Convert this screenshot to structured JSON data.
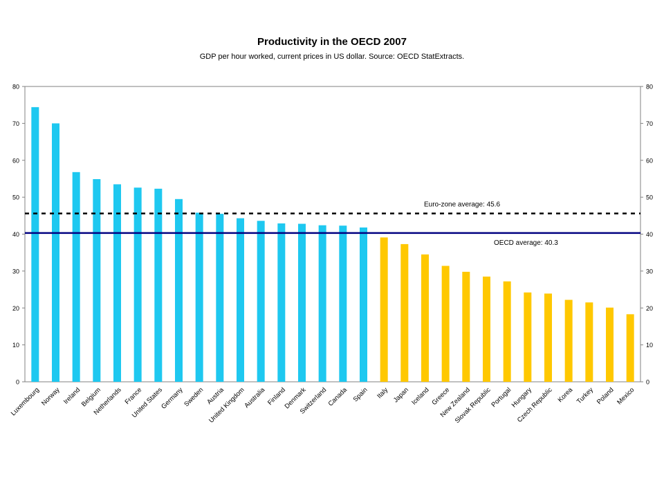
{
  "chart_data": {
    "type": "bar",
    "title": "Productivity in the OECD 2007",
    "subtitle": "GDP per hour worked, current prices in US dollar. Source: OECD StatExtracts.",
    "xlabel": "",
    "ylabel": "",
    "ylim": [
      0,
      80
    ],
    "yticks": [
      0,
      10,
      20,
      30,
      40,
      50,
      60,
      70,
      80
    ],
    "grid": false,
    "categories": [
      "Luxembourg",
      "Norway",
      "Ireland",
      "Belgium",
      "Netherlands",
      "France",
      "United States",
      "Germany",
      "Sweden",
      "Austria",
      "United Kingdom",
      "Australia",
      "Finland",
      "Denmark",
      "Switzerland",
      "Canada",
      "Spain",
      "Italy",
      "Japan",
      "Iceland",
      "Greece",
      "New Zealand",
      "Slovak Republic",
      "Portugal",
      "Hungary",
      "Czech Republic",
      "Korea",
      "Turkey",
      "Poland",
      "Mexico"
    ],
    "values": [
      74.4,
      70.0,
      56.8,
      54.9,
      53.5,
      52.6,
      52.3,
      49.5,
      45.8,
      45.5,
      44.3,
      43.6,
      42.9,
      42.8,
      42.4,
      42.3,
      41.8,
      39.1,
      37.3,
      34.5,
      31.4,
      29.8,
      28.5,
      27.2,
      24.2,
      23.9,
      22.2,
      21.5,
      20.1,
      18.3
    ],
    "colors": {
      "above_oecd": "#1ec8f0",
      "below_oecd": "#ffc800"
    },
    "reference_lines": [
      {
        "label": "Euro-zone average: 45.6",
        "value": 45.6,
        "style": "dashed",
        "color": "#000000"
      },
      {
        "label": "OECD average: 40.3",
        "value": 40.3,
        "style": "solid",
        "color": "#000080"
      }
    ]
  }
}
